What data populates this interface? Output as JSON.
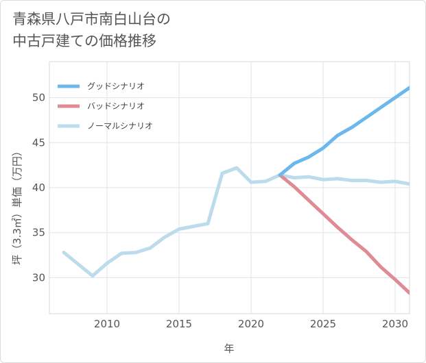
{
  "title": {
    "line1": "青森県八戸市南白山台の",
    "line2": "中古戸建ての価格推移"
  },
  "chart_data": {
    "type": "line",
    "title": "青森県八戸市南白山台の中古戸建ての価格推移",
    "xlabel": "年",
    "ylabel": "坪（3.3㎡）単価（万円）",
    "xlim": [
      2006,
      2031
    ],
    "ylim": [
      26,
      54
    ],
    "x_ticks": [
      2010,
      2015,
      2020,
      2025,
      2030
    ],
    "y_ticks": [
      30,
      35,
      40,
      45,
      50
    ],
    "grid": true,
    "legend_position": "top-left",
    "series": [
      {
        "name": "グッドシナリオ",
        "color": "#6cb8ec",
        "x": [
          2022,
          2023,
          2024,
          2025,
          2026,
          2027,
          2028,
          2029,
          2030,
          2031
        ],
        "values": [
          41.4,
          42.7,
          43.4,
          44.4,
          45.8,
          46.7,
          47.8,
          48.9,
          50.0,
          51.1
        ]
      },
      {
        "name": "バッドシナリオ",
        "color": "#df8b94",
        "x": [
          2022,
          2023,
          2024,
          2025,
          2026,
          2027,
          2028,
          2029,
          2030,
          2031
        ],
        "values": [
          41.4,
          40.1,
          38.6,
          37.1,
          35.6,
          34.2,
          32.9,
          31.2,
          29.8,
          28.3
        ]
      },
      {
        "name": "ノーマルシナリオ",
        "color": "#bcdcec",
        "x": [
          2007,
          2008,
          2009,
          2010,
          2011,
          2012,
          2013,
          2014,
          2015,
          2016,
          2017,
          2018,
          2019,
          2020,
          2021,
          2022,
          2023,
          2024,
          2025,
          2026,
          2027,
          2028,
          2029,
          2030,
          2031
        ],
        "values": [
          32.8,
          31.5,
          30.2,
          31.6,
          32.7,
          32.8,
          33.3,
          34.5,
          35.4,
          35.7,
          36.0,
          41.6,
          42.2,
          40.6,
          40.7,
          41.4,
          41.1,
          41.2,
          40.9,
          41.0,
          40.8,
          40.8,
          40.6,
          40.7,
          40.4
        ]
      }
    ]
  }
}
